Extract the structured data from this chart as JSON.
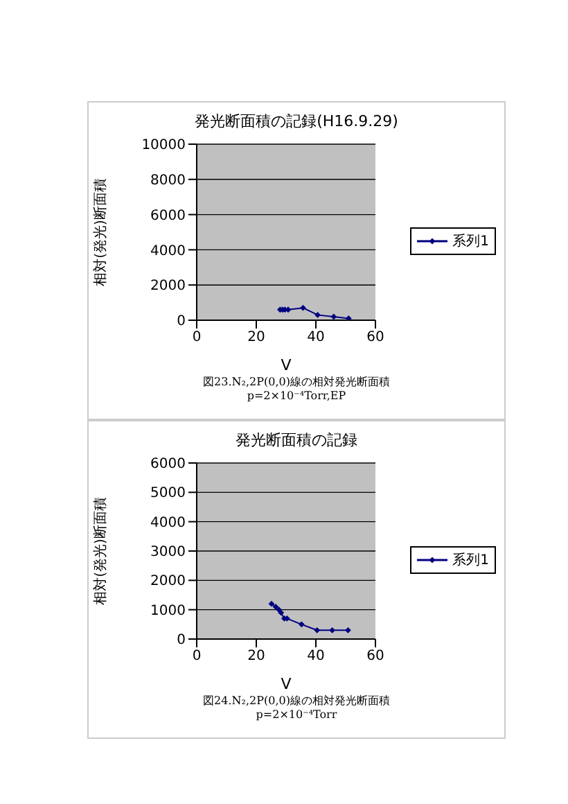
{
  "chart_data": [
    {
      "type": "line",
      "title": "発光断面積の記録(H16.9.29)",
      "xlabel": "V",
      "ylabel": "相対(発光)断面積",
      "x": [
        28,
        28.8,
        29.6,
        30.7,
        35.7,
        40.6,
        46,
        51
      ],
      "series": [
        {
          "name": "系列1",
          "color": "#000080",
          "values": [
            600,
            600,
            600,
            600,
            700,
            300,
            200,
            100
          ]
        }
      ],
      "xlim": [
        0,
        60
      ],
      "xticks": [
        0,
        20,
        40,
        60
      ],
      "ylim": [
        0,
        10000
      ],
      "yticks": [
        0,
        2000,
        4000,
        6000,
        8000,
        10000
      ],
      "grid": "y",
      "legend": "right",
      "marker": "diamond",
      "annotations": [
        "図23.N₂,2P(0,0)線の相対発光断面積",
        "p=2×10⁻⁴Torr,EP"
      ]
    },
    {
      "type": "line",
      "title": "発光断面積の記録",
      "xlabel": "V",
      "ylabel": "相対(発光)断面積",
      "x": [
        25.1,
        26.5,
        27.6,
        28.3,
        29.4,
        30.3,
        35.2,
        40.4,
        45.5,
        50.8
      ],
      "series": [
        {
          "name": "系列1",
          "color": "#000080",
          "values": [
            1200,
            1100,
            1000,
            900,
            700,
            700,
            500,
            300,
            300,
            300
          ]
        }
      ],
      "xlim": [
        0,
        60
      ],
      "xticks": [
        0,
        20,
        40,
        60
      ],
      "ylim": [
        0,
        6000
      ],
      "yticks": [
        0,
        1000,
        2000,
        3000,
        4000,
        5000,
        6000
      ],
      "grid": "y",
      "legend": "right",
      "marker": "diamond",
      "annotations": [
        "図24.N₂,2P(0,0)線の相対発光断面積",
        "p=2×10⁻⁴Torr"
      ]
    }
  ]
}
